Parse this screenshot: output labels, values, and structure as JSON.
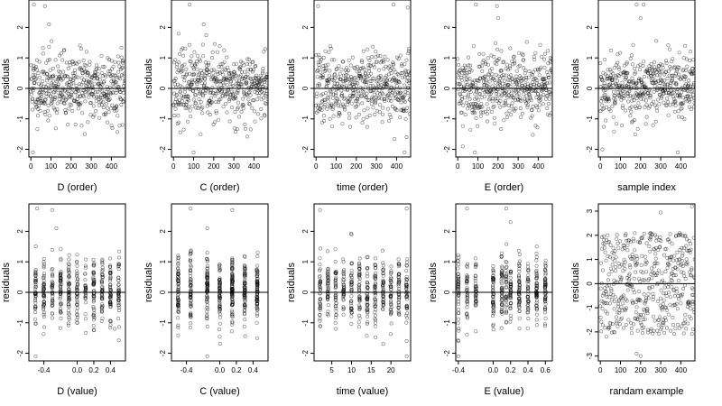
{
  "chart_data": [
    {
      "type": "scatter",
      "xlabel": "D (order)",
      "ylabel": "residuals",
      "xlim": [
        -10,
        470
      ],
      "ylim": [
        -2.25,
        2.9
      ],
      "xticks": [
        "0",
        "100",
        "200",
        "300",
        "400"
      ],
      "xtick_values": [
        0,
        100,
        200,
        300,
        400
      ],
      "yticks": [
        "-2",
        "-1",
        "0",
        "1",
        "2"
      ],
      "ytick_values": [
        -2,
        -1,
        0,
        1,
        2
      ],
      "hline": 0,
      "x_kind": "index",
      "n": 470,
      "y_kind": "residual",
      "seed": 11,
      "extremes": [
        [
          15,
          2.75
        ],
        [
          70,
          2.7
        ],
        [
          10,
          -2.1
        ],
        [
          455,
          -1.2
        ],
        [
          90,
          2.1
        ]
      ]
    },
    {
      "type": "scatter",
      "xlabel": "C (order)",
      "ylabel": "residuals",
      "xlim": [
        -10,
        470
      ],
      "ylim": [
        -2.25,
        2.9
      ],
      "xticks": [
        "0",
        "100",
        "200",
        "300",
        "400"
      ],
      "xtick_values": [
        0,
        100,
        200,
        300,
        400
      ],
      "yticks": [
        "-2",
        "-1",
        "0",
        "1",
        "2"
      ],
      "ytick_values": [
        -2,
        -1,
        0,
        1,
        2
      ],
      "hline": 0,
      "x_kind": "index",
      "n": 470,
      "y_kind": "residual",
      "seed": 23,
      "extremes": [
        [
          80,
          2.75
        ],
        [
          150,
          2.1
        ],
        [
          100,
          -2.1
        ],
        [
          135,
          -1.5
        ],
        [
          25,
          1.8
        ]
      ]
    },
    {
      "type": "scatter",
      "xlabel": "time (order)",
      "ylabel": "residuals",
      "xlim": [
        -10,
        470
      ],
      "ylim": [
        -2.25,
        2.9
      ],
      "xticks": [
        "0",
        "100",
        "200",
        "300",
        "400"
      ],
      "xtick_values": [
        0,
        100,
        200,
        300,
        400
      ],
      "yticks": [
        "-2",
        "-1",
        "0",
        "1",
        "2"
      ],
      "ytick_values": [
        -2,
        -1,
        0,
        1,
        2
      ],
      "hline": 0,
      "x_kind": "index",
      "n": 470,
      "y_kind": "residual",
      "seed": 37,
      "extremes": [
        [
          10,
          2.7
        ],
        [
          385,
          2.75
        ],
        [
          455,
          2.65
        ],
        [
          440,
          -2.1
        ],
        [
          450,
          -1.6
        ]
      ]
    },
    {
      "type": "scatter",
      "xlabel": "E (order)",
      "ylabel": "residuals",
      "xlim": [
        -10,
        470
      ],
      "ylim": [
        -2.25,
        2.9
      ],
      "xticks": [
        "0",
        "100",
        "200",
        "300",
        "400"
      ],
      "xtick_values": [
        0,
        100,
        200,
        300,
        400
      ],
      "yticks": [
        "-2",
        "-1",
        "0",
        "1",
        "2"
      ],
      "ytick_values": [
        -2,
        -1,
        0,
        1,
        2
      ],
      "hline": 0,
      "x_kind": "index",
      "n": 470,
      "y_kind": "residual",
      "seed": 41,
      "extremes": [
        [
          90,
          2.75
        ],
        [
          195,
          2.7
        ],
        [
          25,
          -1.9
        ],
        [
          85,
          -2.1
        ],
        [
          200,
          2.3
        ]
      ]
    },
    {
      "type": "scatter",
      "xlabel": "sample index",
      "ylabel": "residuals",
      "xlim": [
        -10,
        470
      ],
      "ylim": [
        -2.25,
        2.9
      ],
      "xticks": [
        "0",
        "100",
        "200",
        "300",
        "400"
      ],
      "xtick_values": [
        0,
        100,
        200,
        300,
        400
      ],
      "yticks": [
        "-2",
        "-1",
        "0",
        "1",
        "2"
      ],
      "ytick_values": [
        -2,
        -1,
        0,
        1,
        2
      ],
      "hline": 0,
      "x_kind": "index",
      "n": 470,
      "y_kind": "residual",
      "seed": 53,
      "extremes": [
        [
          180,
          2.75
        ],
        [
          215,
          2.75
        ],
        [
          200,
          2.3
        ],
        [
          385,
          -2.1
        ],
        [
          10,
          -2.0
        ]
      ]
    },
    {
      "type": "scatter",
      "xlabel": "D (value)",
      "ylabel": "residuals",
      "xlim": [
        -0.58,
        0.58
      ],
      "ylim": [
        -2.25,
        2.9
      ],
      "xticks": [
        "-0.4",
        "0.0",
        "0.2",
        "0.4"
      ],
      "xtick_values": [
        -0.4,
        0.0,
        0.2,
        0.4
      ],
      "yticks": [
        "-2",
        "-1",
        "0",
        "1",
        "2"
      ],
      "ytick_values": [
        -2,
        -1,
        0,
        1,
        2
      ],
      "hline": 0,
      "x_kind": "discrete",
      "x_levels": [
        -0.5,
        -0.4,
        -0.3,
        -0.2,
        -0.1,
        0.0,
        0.1,
        0.2,
        0.3,
        0.4,
        0.5
      ],
      "n": 470,
      "y_kind": "residual",
      "seed": 61,
      "extremes": [
        [
          -0.48,
          2.75
        ],
        [
          -0.3,
          2.7
        ],
        [
          -0.5,
          -2.1
        ],
        [
          0.45,
          -1.2
        ],
        [
          -0.25,
          2.1
        ]
      ]
    },
    {
      "type": "scatter",
      "xlabel": "C (value)",
      "ylabel": "residuals",
      "xlim": [
        -0.58,
        0.58
      ],
      "ylim": [
        -2.25,
        2.9
      ],
      "xticks": [
        "-0.4",
        "0.0",
        "0.2",
        "0.4"
      ],
      "xtick_values": [
        -0.4,
        0.0,
        0.2,
        0.4
      ],
      "yticks": [
        "-2",
        "-1",
        "0",
        "1",
        "2"
      ],
      "ytick_values": [
        -2,
        -1,
        0,
        1,
        2
      ],
      "hline": 0,
      "x_kind": "discrete",
      "x_levels": [
        -0.5,
        -0.35,
        -0.15,
        0.0,
        0.15,
        0.3,
        0.45
      ],
      "n": 470,
      "y_kind": "residual",
      "seed": 71,
      "extremes": [
        [
          -0.35,
          2.75
        ],
        [
          -0.15,
          2.1
        ],
        [
          -0.15,
          -2.1
        ],
        [
          0.15,
          2.7
        ],
        [
          0.45,
          -1.5
        ]
      ]
    },
    {
      "type": "scatter",
      "xlabel": "time (value)",
      "ylabel": "residuals",
      "xlim": [
        0.5,
        25
      ],
      "ylim": [
        -2.25,
        2.9
      ],
      "xticks": [
        "5",
        "10",
        "15",
        "20"
      ],
      "xtick_values": [
        5,
        10,
        15,
        20
      ],
      "yticks": [
        "-2",
        "-1",
        "0",
        "1",
        "2"
      ],
      "ytick_values": [
        -2,
        -1,
        0,
        1,
        2
      ],
      "hline": 0,
      "x_kind": "discrete",
      "x_levels": [
        2,
        4,
        6,
        8,
        10,
        12,
        14,
        16,
        18,
        20,
        22,
        24
      ],
      "n": 470,
      "y_kind": "residual",
      "seed": 83,
      "extremes": [
        [
          2,
          2.7
        ],
        [
          24,
          2.75
        ],
        [
          24,
          -2.1
        ],
        [
          24,
          -1.6
        ],
        [
          10,
          1.9
        ]
      ]
    },
    {
      "type": "scatter",
      "xlabel": "E (value)",
      "ylabel": "residuals",
      "xlim": [
        -0.43,
        0.68
      ],
      "ylim": [
        -2.25,
        2.9
      ],
      "xticks": [
        "-0.4",
        "0.0",
        "0.2",
        "0.4",
        "0.6"
      ],
      "xtick_values": [
        -0.4,
        0.0,
        0.2,
        0.4,
        0.6
      ],
      "yticks": [
        "-2",
        "-1",
        "0",
        "1",
        "2"
      ],
      "ytick_values": [
        -2,
        -1,
        0,
        1,
        2
      ],
      "hline": 0,
      "x_kind": "discrete",
      "x_levels": [
        -0.4,
        -0.3,
        -0.2,
        0.0,
        0.1,
        0.15,
        0.2,
        0.3,
        0.4,
        0.5,
        0.6
      ],
      "n": 470,
      "y_kind": "residual",
      "seed": 97,
      "extremes": [
        [
          -0.3,
          2.75
        ],
        [
          0.15,
          2.75
        ],
        [
          -0.4,
          -2.1
        ],
        [
          0.2,
          2.3
        ],
        [
          -0.4,
          -1.6
        ]
      ]
    },
    {
      "type": "scatter",
      "xlabel": "randam example",
      "ylabel": "residuals",
      "xlim": [
        -10,
        470
      ],
      "ylim": [
        -3.2,
        3.3
      ],
      "xticks": [
        "0",
        "100",
        "200",
        "300",
        "400"
      ],
      "xtick_values": [
        0,
        100,
        200,
        300,
        400
      ],
      "yticks": [
        "-3",
        "-2",
        "-1",
        "0",
        "1",
        "2",
        "3"
      ],
      "ytick_values": [
        -3,
        -2,
        -1,
        0,
        1,
        2,
        3
      ],
      "hline": 0,
      "x_kind": "index",
      "n": 470,
      "y_kind": "uniform",
      "seed": 109,
      "extremes": [
        [
          455,
          3.2
        ],
        [
          300,
          2.95
        ],
        [
          200,
          -3.0
        ],
        [
          180,
          -2.9
        ],
        [
          30,
          -2.2
        ]
      ]
    }
  ]
}
